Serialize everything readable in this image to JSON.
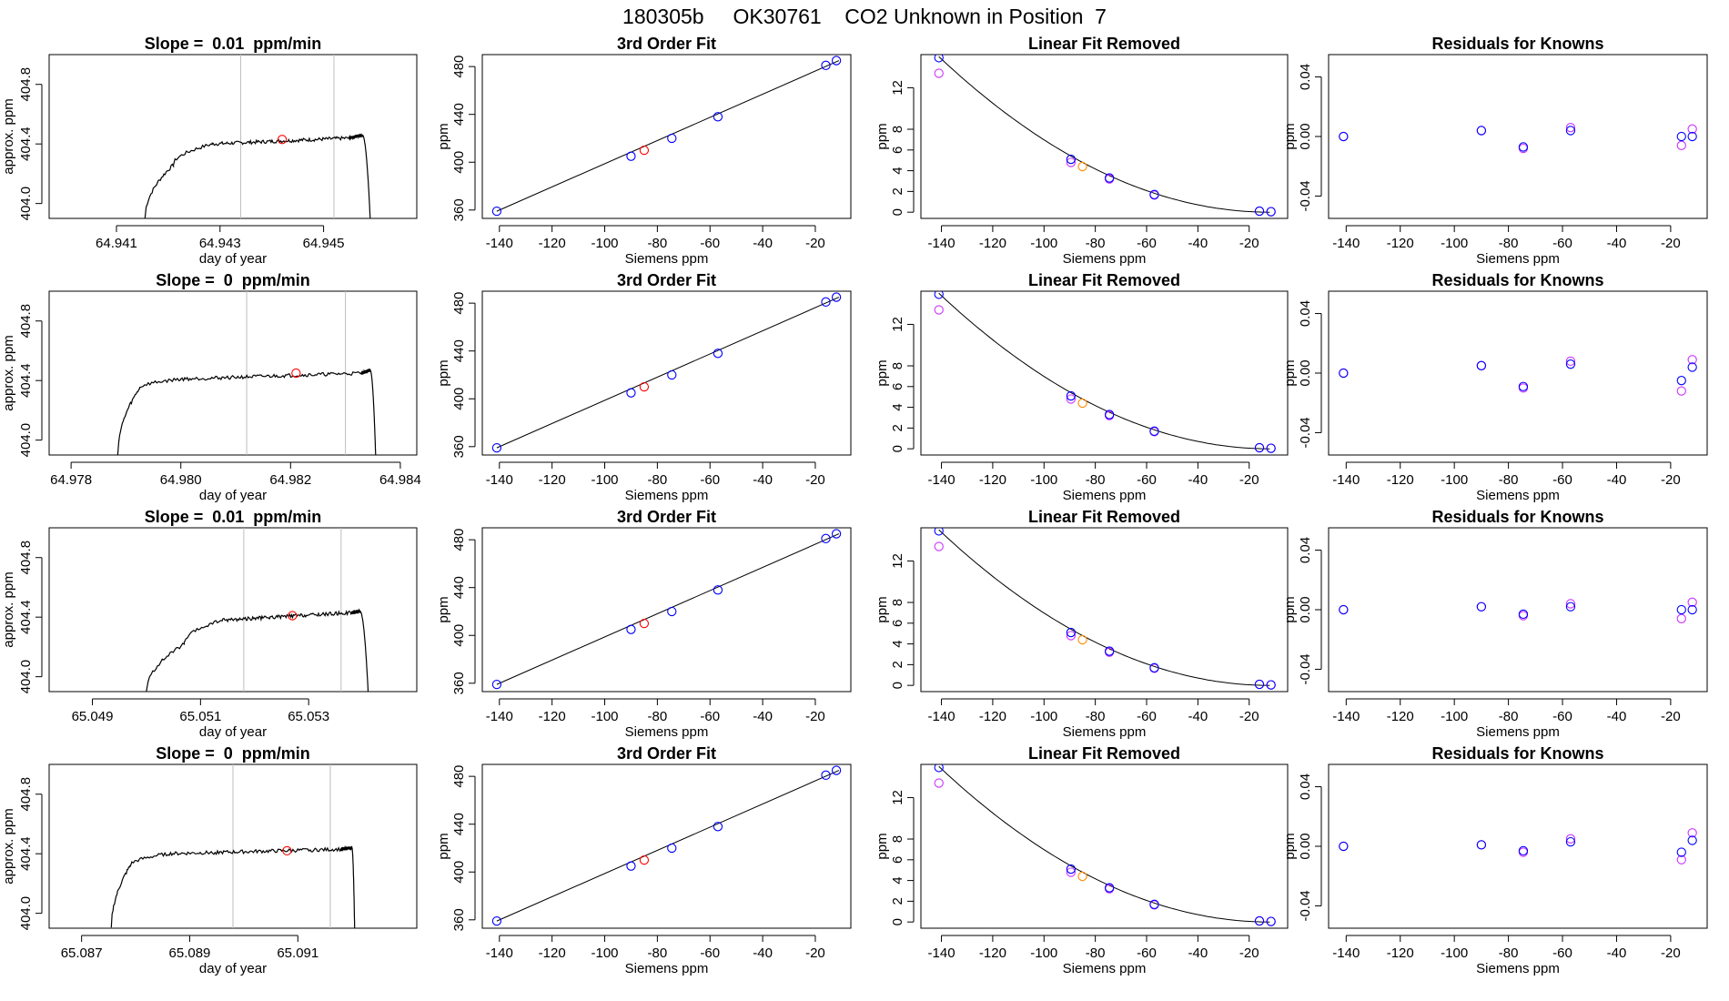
{
  "title": "180305b     OK30761    CO2 Unknown in Position  7",
  "colors": {
    "axis": "#000000",
    "trace": "#000000",
    "vline": "#bebebe",
    "marker_red": "#ff0000",
    "marker_blue": "#0000ff",
    "marker_magenta": "#cc33ff",
    "marker_orange": "#ff8c00",
    "curve": "#000000"
  },
  "chart_data": [
    {
      "row": 1,
      "col": 1,
      "type": "line",
      "title": "Slope =  0.01  ppm/min",
      "xlabel": "day of year",
      "ylabel": "approx. ppm",
      "xlim": [
        64.9397,
        64.9468
      ],
      "ylim": [
        403.9,
        405.0
      ],
      "xticks": [
        64.941,
        64.943,
        64.945
      ],
      "yticks": [
        404.0,
        404.4,
        404.8
      ],
      "vlines": [
        64.9434,
        64.9452
      ],
      "segments": [
        {
          "x0": 64.94155,
          "x1": 64.9421,
          "y0": 403.9,
          "y1": 404.26,
          "curve": "sqrt"
        },
        {
          "x0": 64.9421,
          "x1": 64.94285,
          "y0": 404.26,
          "y1": 404.4,
          "curve": "sqrt"
        },
        {
          "x0": 64.94285,
          "x1": 64.9455,
          "y0": 404.4,
          "y1": 404.44,
          "curve": "lin"
        },
        {
          "x0": 64.9455,
          "x1": 64.94575,
          "y0": 404.44,
          "y1": 404.46,
          "curve": "lin"
        },
        {
          "x0": 64.94575,
          "x1": 64.9459,
          "y0": 404.46,
          "y1": 403.9,
          "curve": "drop"
        }
      ],
      "noise": 0.012,
      "marker": {
        "x": 64.9442,
        "y": 404.43
      }
    },
    {
      "row": 1,
      "col": 2,
      "type": "scatter",
      "title": "3rd Order Fit",
      "xlabel": "Siemens ppm",
      "ylabel": "ppm",
      "xlim": [
        -146.5,
        -6.5
      ],
      "ylim": [
        353,
        490
      ],
      "xticks": [
        -140,
        -120,
        -100,
        -80,
        -60,
        -40,
        -20
      ],
      "yticks": [
        360,
        400,
        440,
        480
      ],
      "line": [
        [
          -141,
          359
        ],
        [
          -11,
          485
        ]
      ],
      "points_blue": [
        [
          -141,
          359
        ],
        [
          -90,
          405
        ],
        [
          -74.5,
          420
        ],
        [
          -57,
          438
        ],
        [
          -16,
          481
        ],
        [
          -12,
          485
        ]
      ],
      "points_red": [
        [
          -85,
          410
        ]
      ]
    },
    {
      "row": 1,
      "col": 3,
      "type": "scatter",
      "title": "Linear Fit Removed",
      "xlabel": "Siemens ppm",
      "ylabel": "ppm",
      "xlim": [
        -148,
        -5
      ],
      "ylim": [
        -0.6,
        15.2
      ],
      "xticks": [
        -140,
        -120,
        -100,
        -80,
        -60,
        -40,
        -20
      ],
      "yticks": [
        0,
        2,
        4,
        6,
        8,
        12
      ],
      "curve": [
        -141,
        15.0,
        -12,
        0
      ],
      "points_blue": [
        [
          -141,
          14.9
        ],
        [
          -89.5,
          5.1
        ],
        [
          -74.5,
          3.3
        ],
        [
          -57,
          1.7
        ],
        [
          -16,
          0.1
        ],
        [
          -11.5,
          0.05
        ]
      ],
      "points_magenta": [
        [
          -141,
          13.4
        ],
        [
          -89.5,
          4.8
        ],
        [
          -74.5,
          3.2
        ],
        [
          -57,
          1.65
        ],
        [
          -16,
          0.1
        ],
        [
          -11.5,
          0.05
        ]
      ],
      "points_orange": [
        [
          -85,
          4.4
        ]
      ]
    },
    {
      "row": 1,
      "col": 4,
      "type": "scatter",
      "title": "Residuals for Knowns",
      "xlabel": "Siemens ppm",
      "ylabel": "ppm",
      "xlim": [
        -146.5,
        -6.5
      ],
      "ylim": [
        -0.055,
        0.055
      ],
      "xticks": [
        -140,
        -120,
        -100,
        -80,
        -60,
        -40,
        -20
      ],
      "yticks": [
        -0.04,
        0.0,
        0.04
      ],
      "points_blue": [
        [
          -141,
          0.0
        ],
        [
          -90,
          0.004
        ],
        [
          -74.5,
          -0.007
        ],
        [
          -57,
          0.004
        ],
        [
          -16,
          0.0
        ],
        [
          -12,
          0.0
        ]
      ],
      "points_magenta": [
        [
          -141,
          0.0
        ],
        [
          -90,
          0.004
        ],
        [
          -74.5,
          -0.008
        ],
        [
          -57,
          0.006
        ],
        [
          -16,
          -0.006
        ],
        [
          -12,
          0.005
        ]
      ]
    },
    {
      "row": 2,
      "col": 1,
      "type": "line",
      "title": "Slope =  0  ppm/min",
      "xlabel": "day of year",
      "ylabel": "approx. ppm",
      "xlim": [
        64.9776,
        64.9843
      ],
      "ylim": [
        403.9,
        405.0
      ],
      "xticks": [
        64.978,
        64.98,
        64.982,
        64.984
      ],
      "yticks": [
        404.0,
        404.4,
        404.8
      ],
      "vlines": [
        64.9812,
        64.983
      ],
      "segments": [
        {
          "x0": 64.97885,
          "x1": 64.97925,
          "y0": 403.9,
          "y1": 404.35,
          "curve": "sqrt"
        },
        {
          "x0": 64.97925,
          "x1": 64.98,
          "y0": 404.35,
          "y1": 404.41,
          "curve": "sqrt"
        },
        {
          "x0": 64.98,
          "x1": 64.9833,
          "y0": 404.41,
          "y1": 404.45,
          "curve": "lin"
        },
        {
          "x0": 64.9833,
          "x1": 64.98345,
          "y0": 404.45,
          "y1": 404.47,
          "curve": "lin"
        },
        {
          "x0": 64.98345,
          "x1": 64.98355,
          "y0": 404.47,
          "y1": 403.9,
          "curve": "drop"
        }
      ],
      "noise": 0.012,
      "marker": {
        "x": 64.9821,
        "y": 404.45
      }
    },
    {
      "row": 2,
      "col": 2,
      "type": "scatter",
      "title": "3rd Order Fit",
      "xlabel": "Siemens ppm",
      "ylabel": "ppm",
      "xlim": [
        -146.5,
        -6.5
      ],
      "ylim": [
        353,
        490
      ],
      "xticks": [
        -140,
        -120,
        -100,
        -80,
        -60,
        -40,
        -20
      ],
      "yticks": [
        360,
        400,
        440,
        480
      ],
      "line": [
        [
          -141,
          359
        ],
        [
          -11,
          485
        ]
      ],
      "points_blue": [
        [
          -141,
          359
        ],
        [
          -90,
          405
        ],
        [
          -74.5,
          420
        ],
        [
          -57,
          438
        ],
        [
          -16,
          481
        ],
        [
          -12,
          485
        ]
      ],
      "points_red": [
        [
          -85,
          410
        ]
      ]
    },
    {
      "row": 2,
      "col": 3,
      "type": "scatter",
      "title": "Linear Fit Removed",
      "xlabel": "Siemens ppm",
      "ylabel": "ppm",
      "xlim": [
        -148,
        -5
      ],
      "ylim": [
        -0.6,
        15.2
      ],
      "xticks": [
        -140,
        -120,
        -100,
        -80,
        -60,
        -40,
        -20
      ],
      "yticks": [
        0,
        2,
        4,
        6,
        8,
        12
      ],
      "curve": [
        -141,
        15.0,
        -12,
        0
      ],
      "points_blue": [
        [
          -141,
          14.9
        ],
        [
          -89.5,
          5.1
        ],
        [
          -74.5,
          3.3
        ],
        [
          -57,
          1.7
        ],
        [
          -16,
          0.1
        ],
        [
          -11.5,
          0.05
        ]
      ],
      "points_magenta": [
        [
          -141,
          13.4
        ],
        [
          -89.5,
          4.8
        ],
        [
          -74.5,
          3.2
        ],
        [
          -57,
          1.65
        ],
        [
          -16,
          0.1
        ],
        [
          -11.5,
          0.05
        ]
      ],
      "points_orange": [
        [
          -85,
          4.4
        ]
      ]
    },
    {
      "row": 2,
      "col": 4,
      "type": "scatter",
      "title": "Residuals for Knowns",
      "xlabel": "Siemens ppm",
      "ylabel": "ppm",
      "xlim": [
        -146.5,
        -6.5
      ],
      "ylim": [
        -0.055,
        0.055
      ],
      "xticks": [
        -140,
        -120,
        -100,
        -80,
        -60,
        -40,
        -20
      ],
      "yticks": [
        -0.04,
        0.0,
        0.04
      ],
      "points_blue": [
        [
          -141,
          0.0
        ],
        [
          -90,
          0.005
        ],
        [
          -74.5,
          -0.009
        ],
        [
          -57,
          0.006
        ],
        [
          -16,
          -0.005
        ],
        [
          -12,
          0.004
        ]
      ],
      "points_magenta": [
        [
          -141,
          0.0
        ],
        [
          -90,
          0.005
        ],
        [
          -74.5,
          -0.01
        ],
        [
          -57,
          0.008
        ],
        [
          -16,
          -0.012
        ],
        [
          -12,
          0.009
        ]
      ]
    },
    {
      "row": 3,
      "col": 1,
      "type": "line",
      "title": "Slope =  0.01  ppm/min",
      "xlabel": "day of year",
      "ylabel": "approx. ppm",
      "xlim": [
        65.0482,
        65.055
      ],
      "ylim": [
        403.9,
        405.0
      ],
      "xticks": [
        65.049,
        65.051,
        65.053
      ],
      "yticks": [
        404.0,
        404.4,
        404.8
      ],
      "vlines": [
        65.0518,
        65.0536
      ],
      "segments": [
        {
          "x0": 65.05,
          "x1": 65.0507,
          "y0": 403.9,
          "y1": 404.22,
          "curve": "sqrt"
        },
        {
          "x0": 65.0507,
          "x1": 65.0514,
          "y0": 404.22,
          "y1": 404.38,
          "curve": "sqrt"
        },
        {
          "x0": 65.0514,
          "x1": 65.0538,
          "y0": 404.38,
          "y1": 404.43,
          "curve": "lin"
        },
        {
          "x0": 65.0538,
          "x1": 65.05395,
          "y0": 404.43,
          "y1": 404.44,
          "curve": "lin"
        },
        {
          "x0": 65.05395,
          "x1": 65.0541,
          "y0": 404.44,
          "y1": 403.9,
          "curve": "drop"
        }
      ],
      "noise": 0.012,
      "marker": {
        "x": 65.0527,
        "y": 404.41
      }
    },
    {
      "row": 3,
      "col": 2,
      "type": "scatter",
      "title": "3rd Order Fit",
      "xlabel": "Siemens ppm",
      "ylabel": "ppm",
      "xlim": [
        -146.5,
        -6.5
      ],
      "ylim": [
        353,
        490
      ],
      "xticks": [
        -140,
        -120,
        -100,
        -80,
        -60,
        -40,
        -20
      ],
      "yticks": [
        360,
        400,
        440,
        480
      ],
      "line": [
        [
          -141,
          359
        ],
        [
          -11,
          485
        ]
      ],
      "points_blue": [
        [
          -141,
          359
        ],
        [
          -90,
          405
        ],
        [
          -74.5,
          420
        ],
        [
          -57,
          438
        ],
        [
          -16,
          481
        ],
        [
          -12,
          485
        ]
      ],
      "points_red": [
        [
          -85,
          410
        ]
      ]
    },
    {
      "row": 3,
      "col": 3,
      "type": "scatter",
      "title": "Linear Fit Removed",
      "xlabel": "Siemens ppm",
      "ylabel": "ppm",
      "xlim": [
        -148,
        -5
      ],
      "ylim": [
        -0.6,
        15.2
      ],
      "xticks": [
        -140,
        -120,
        -100,
        -80,
        -60,
        -40,
        -20
      ],
      "yticks": [
        0,
        2,
        4,
        6,
        8,
        12
      ],
      "curve": [
        -141,
        15.0,
        -12,
        0
      ],
      "points_blue": [
        [
          -141,
          14.9
        ],
        [
          -89.5,
          5.1
        ],
        [
          -74.5,
          3.3
        ],
        [
          -57,
          1.7
        ],
        [
          -16,
          0.1
        ],
        [
          -11.5,
          0.05
        ]
      ],
      "points_magenta": [
        [
          -141,
          13.4
        ],
        [
          -89.5,
          4.8
        ],
        [
          -74.5,
          3.2
        ],
        [
          -57,
          1.65
        ],
        [
          -16,
          0.1
        ],
        [
          -11.5,
          0.05
        ]
      ],
      "points_orange": [
        [
          -85,
          4.4
        ]
      ]
    },
    {
      "row": 3,
      "col": 4,
      "type": "scatter",
      "title": "Residuals for Knowns",
      "xlabel": "Siemens ppm",
      "ylabel": "ppm",
      "xlim": [
        -146.5,
        -6.5
      ],
      "ylim": [
        -0.055,
        0.055
      ],
      "xticks": [
        -140,
        -120,
        -100,
        -80,
        -60,
        -40,
        -20
      ],
      "yticks": [
        -0.04,
        0.0,
        0.04
      ],
      "points_blue": [
        [
          -141,
          0.0
        ],
        [
          -90,
          0.002
        ],
        [
          -74.5,
          -0.003
        ],
        [
          -57,
          0.002
        ],
        [
          -16,
          0.0
        ],
        [
          -12,
          0.0
        ]
      ],
      "points_magenta": [
        [
          -141,
          0.0
        ],
        [
          -90,
          0.002
        ],
        [
          -74.5,
          -0.004
        ],
        [
          -57,
          0.004
        ],
        [
          -16,
          -0.006
        ],
        [
          -12,
          0.005
        ]
      ]
    },
    {
      "row": 4,
      "col": 1,
      "type": "line",
      "title": "Slope =  0  ppm/min",
      "xlabel": "day of year",
      "ylabel": "approx. ppm",
      "xlim": [
        65.0864,
        65.0932
      ],
      "ylim": [
        403.9,
        405.0
      ],
      "xticks": [
        65.087,
        65.089,
        65.091
      ],
      "yticks": [
        404.0,
        404.4,
        404.8
      ],
      "vlines": [
        65.0898,
        65.0916
      ],
      "segments": [
        {
          "x0": 65.08755,
          "x1": 65.0879,
          "y0": 403.9,
          "y1": 404.32,
          "curve": "sqrt"
        },
        {
          "x0": 65.0879,
          "x1": 65.0886,
          "y0": 404.32,
          "y1": 404.4,
          "curve": "sqrt"
        },
        {
          "x0": 65.0886,
          "x1": 65.0918,
          "y0": 404.4,
          "y1": 404.43,
          "curve": "lin"
        },
        {
          "x0": 65.0918,
          "x1": 65.092,
          "y0": 404.43,
          "y1": 404.44,
          "curve": "lin"
        },
        {
          "x0": 65.092,
          "x1": 65.09205,
          "y0": 404.44,
          "y1": 403.9,
          "curve": "drop"
        }
      ],
      "noise": 0.012,
      "marker": {
        "x": 65.0908,
        "y": 404.42
      }
    },
    {
      "row": 4,
      "col": 2,
      "type": "scatter",
      "title": "3rd Order Fit",
      "xlabel": "Siemens ppm",
      "ylabel": "ppm",
      "xlim": [
        -146.5,
        -6.5
      ],
      "ylim": [
        353,
        490
      ],
      "xticks": [
        -140,
        -120,
        -100,
        -80,
        -60,
        -40,
        -20
      ],
      "yticks": [
        360,
        400,
        440,
        480
      ],
      "line": [
        [
          -141,
          359
        ],
        [
          -11,
          485
        ]
      ],
      "points_blue": [
        [
          -141,
          359
        ],
        [
          -90,
          405
        ],
        [
          -74.5,
          420
        ],
        [
          -57,
          438
        ],
        [
          -16,
          481
        ],
        [
          -12,
          485
        ]
      ],
      "points_red": [
        [
          -85,
          410
        ]
      ]
    },
    {
      "row": 4,
      "col": 3,
      "type": "scatter",
      "title": "Linear Fit Removed",
      "xlabel": "Siemens ppm",
      "ylabel": "ppm",
      "xlim": [
        -148,
        -5
      ],
      "ylim": [
        -0.6,
        15.2
      ],
      "xticks": [
        -140,
        -120,
        -100,
        -80,
        -60,
        -40,
        -20
      ],
      "yticks": [
        0,
        2,
        4,
        6,
        8,
        12
      ],
      "curve": [
        -141,
        15.0,
        -12,
        0
      ],
      "points_blue": [
        [
          -141,
          14.9
        ],
        [
          -89.5,
          5.1
        ],
        [
          -74.5,
          3.3
        ],
        [
          -57,
          1.7
        ],
        [
          -16,
          0.1
        ],
        [
          -11.5,
          0.05
        ]
      ],
      "points_magenta": [
        [
          -141,
          13.4
        ],
        [
          -89.5,
          4.8
        ],
        [
          -74.5,
          3.2
        ],
        [
          -57,
          1.65
        ],
        [
          -16,
          0.1
        ],
        [
          -11.5,
          0.05
        ]
      ],
      "points_orange": [
        [
          -85,
          4.4
        ]
      ]
    },
    {
      "row": 4,
      "col": 4,
      "type": "scatter",
      "title": "Residuals for Knowns",
      "xlabel": "Siemens ppm",
      "ylabel": "ppm",
      "xlim": [
        -146.5,
        -6.5
      ],
      "ylim": [
        -0.055,
        0.055
      ],
      "xticks": [
        -140,
        -120,
        -100,
        -80,
        -60,
        -40,
        -20
      ],
      "yticks": [
        -0.04,
        0.0,
        0.04
      ],
      "points_blue": [
        [
          -141,
          0.0
        ],
        [
          -90,
          0.001
        ],
        [
          -74.5,
          -0.003
        ],
        [
          -57,
          0.003
        ],
        [
          -16,
          -0.004
        ],
        [
          -12,
          0.004
        ]
      ],
      "points_magenta": [
        [
          -141,
          0.0
        ],
        [
          -90,
          0.001
        ],
        [
          -74.5,
          -0.004
        ],
        [
          -57,
          0.005
        ],
        [
          -16,
          -0.009
        ],
        [
          -12,
          0.009
        ]
      ]
    }
  ]
}
